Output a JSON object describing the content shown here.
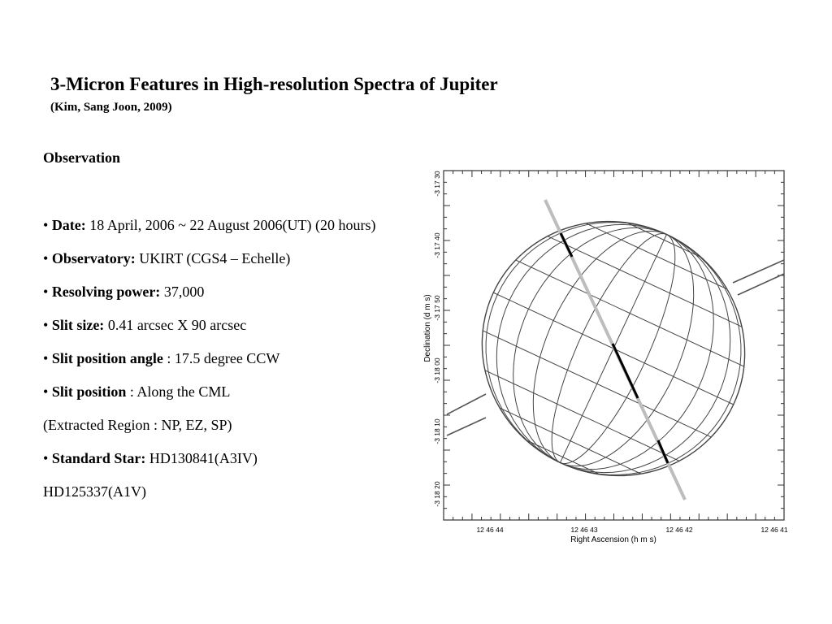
{
  "slide": {
    "title": "3-Micron Features in High-resolution Spectra of Jupiter",
    "subtitle": "(Kim, Sang Joon, 2009)",
    "heading": "Observation",
    "items": [
      {
        "bullet": "•",
        "label": "Date:",
        "text": " 18 April, 2006 ~ 22 August 2006(UT) (20 hours)"
      },
      {
        "bullet": "•",
        "label": "Observatory:",
        "text": " UKIRT (CGS4 – Echelle)"
      },
      {
        "bullet": "•",
        "label": "Resolving power:",
        "text": " 37,000"
      },
      {
        "bullet": "•",
        "label": "Slit size:",
        "text": " 0.41 arcsec X 90 arcsec"
      },
      {
        "bullet": "•",
        "label": "Slit position angle",
        "text": " : 17.5 degree CCW"
      },
      {
        "bullet": "•",
        "label": "Slit position",
        "text": " : Along the CML"
      },
      {
        "bullet": "",
        "label": "",
        "text": "(Extracted Region : NP, EZ,  SP)"
      },
      {
        "bullet": "•",
        "label": "Standard Star:",
        "text": " HD130841(A3IV)"
      },
      {
        "bullet": "",
        "label": "",
        "text": "HD125337(A1V)"
      }
    ]
  },
  "figure": {
    "xlabel": "Right Ascension (h m s)",
    "ylabel": "Declination (d m s)",
    "xticks": [
      "12 46 44",
      "12 46 43",
      "12 46 42",
      "12 46 41"
    ],
    "yticks": [
      "-3 17 30",
      "-3 17 40",
      "-3 17 50",
      "-3 18 00",
      "-3 18 10",
      "-3 18 20"
    ]
  }
}
